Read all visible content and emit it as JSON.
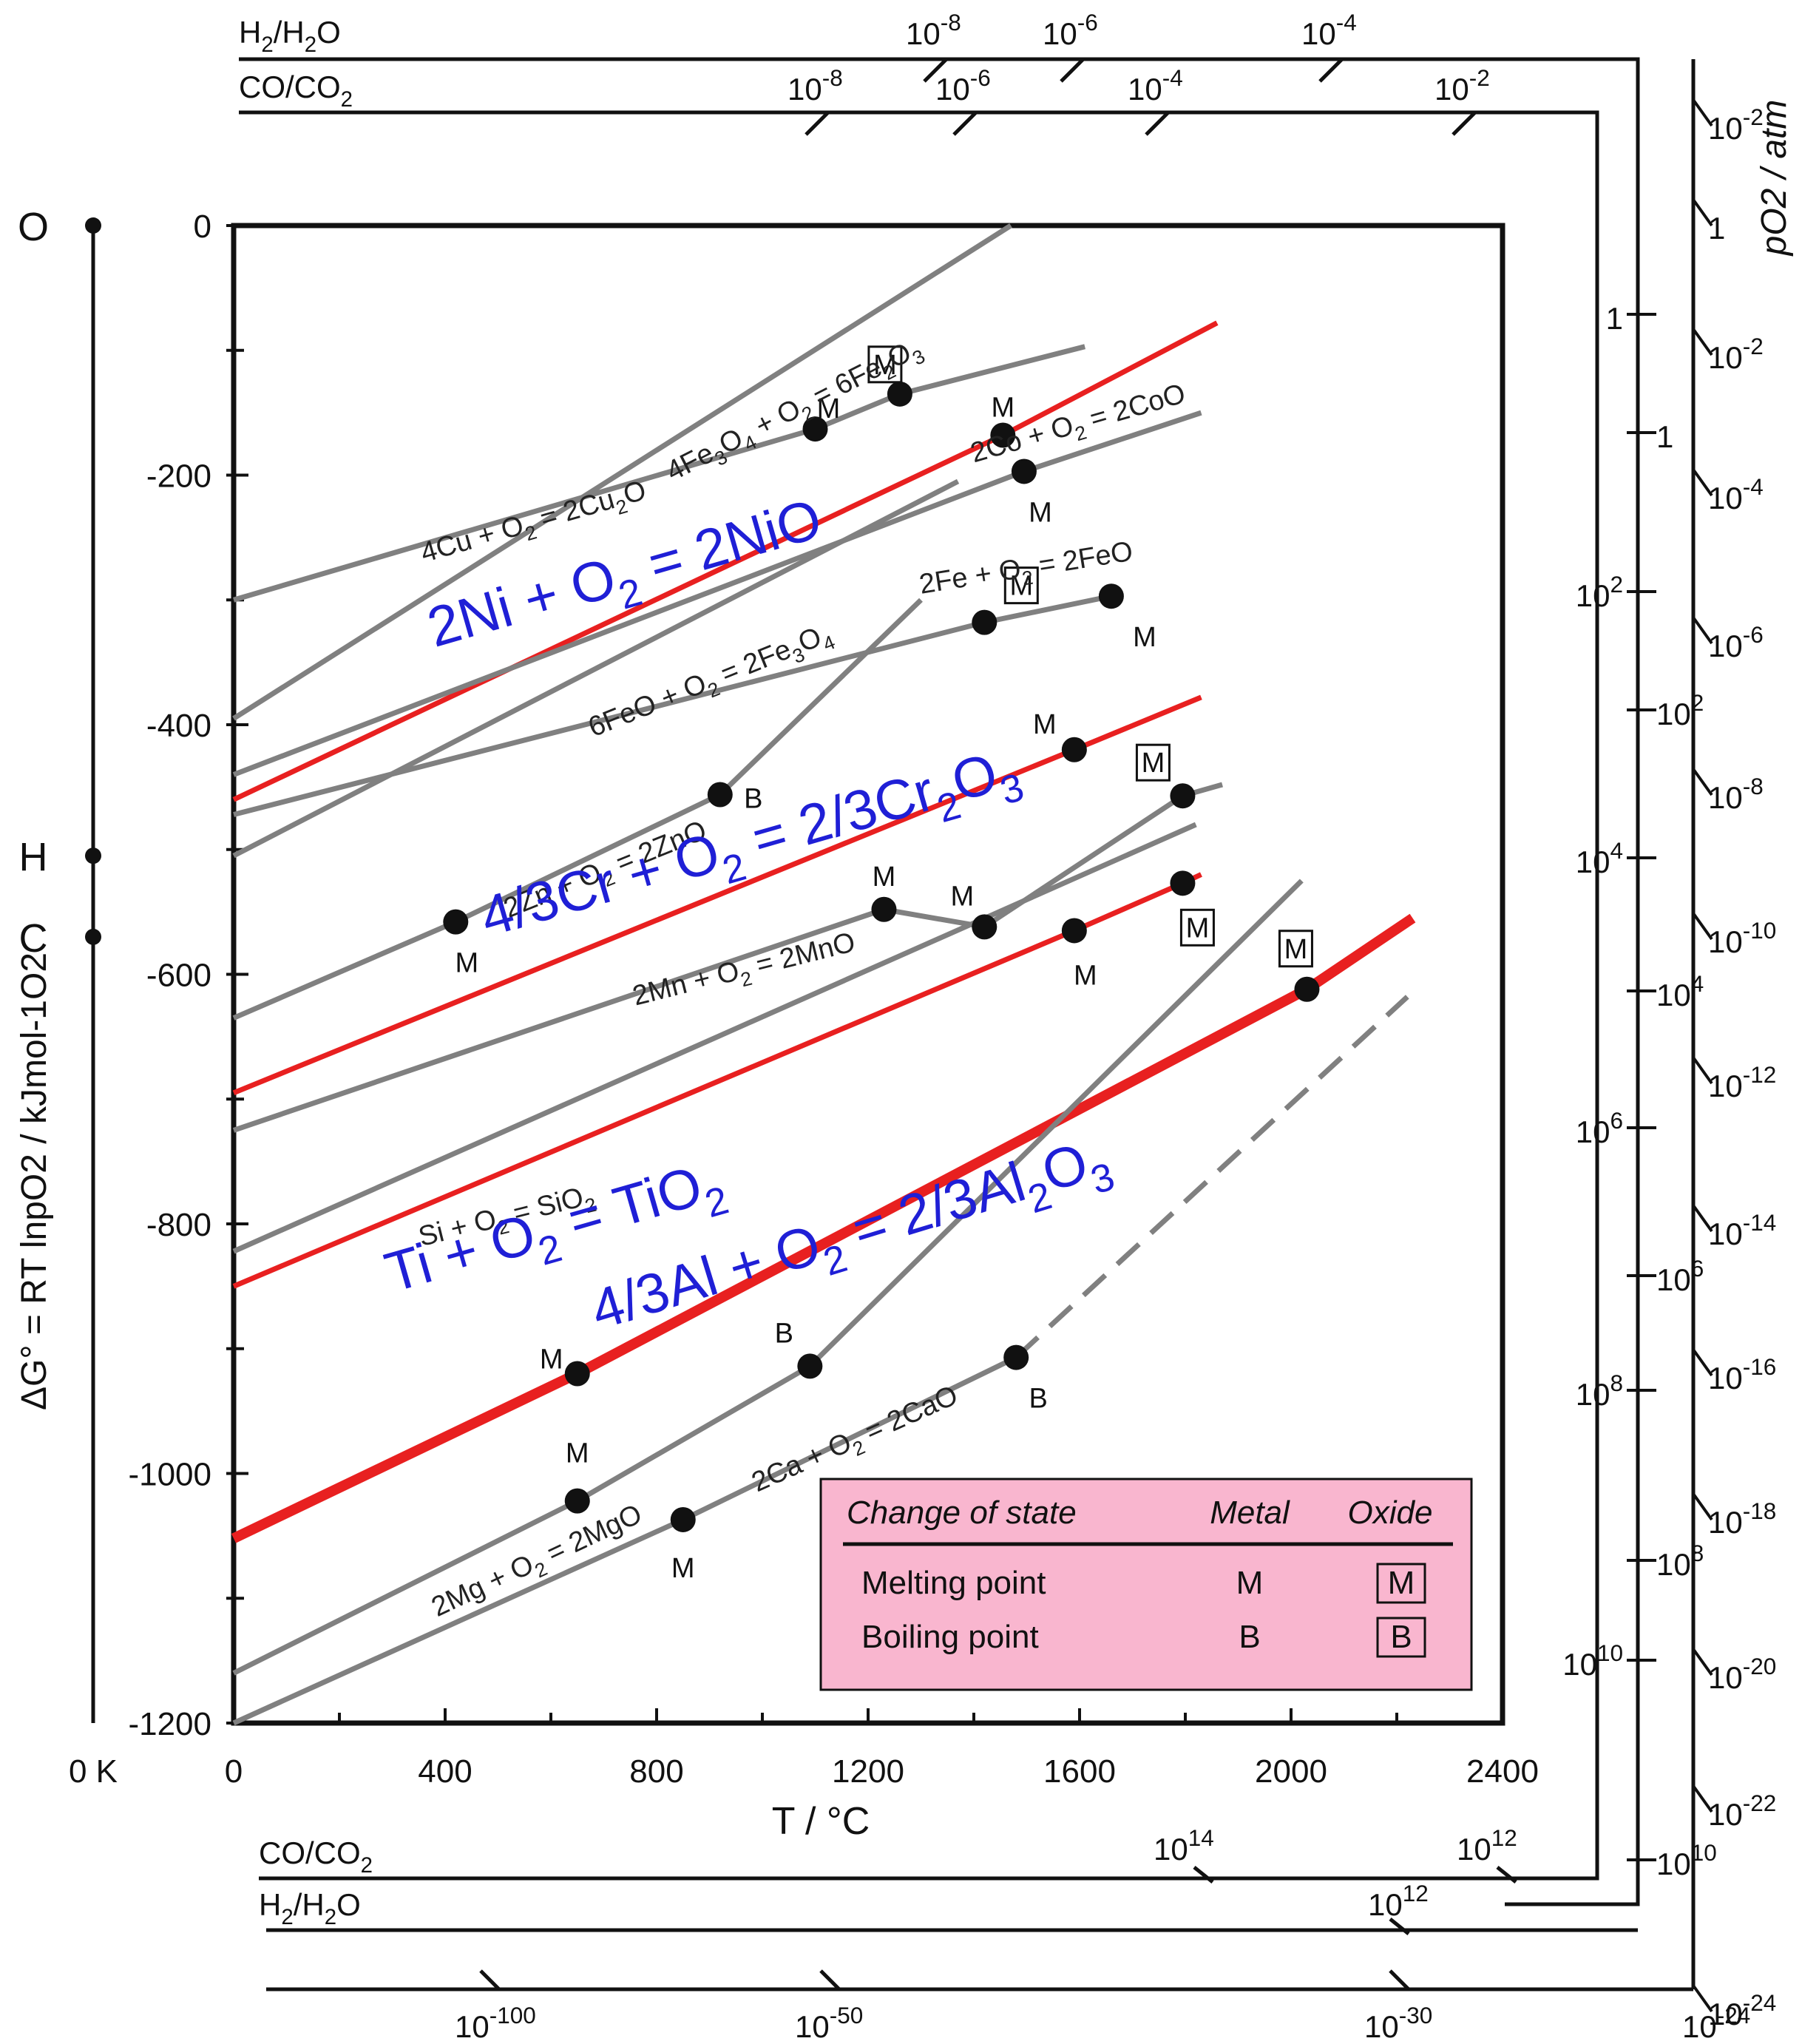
{
  "chart_data": {
    "type": "line",
    "title": "",
    "xlabel": "T / °C",
    "ylabel": "ΔG° = RT lnpO2 / kJmol-1O2",
    "xlim": [
      0,
      2400
    ],
    "ylim": [
      -1200,
      0
    ],
    "x_ticks": [
      "0",
      "400",
      "800",
      "1200",
      "1600",
      "2000",
      "2400"
    ],
    "y_ticks": [
      "0",
      "-200",
      "-400",
      "-600",
      "-800",
      "-1000",
      "-1200"
    ],
    "zero_kelvin_label": "0 K",
    "pivot_labels": [
      "O",
      "H",
      "C"
    ],
    "pivot_values": [
      0,
      -505,
      -570
    ],
    "scales": {
      "h2_h2o_top": {
        "label": "H2/H2O",
        "ticks": [
          "10-8",
          "10-6",
          "10-4"
        ]
      },
      "co_co2_top": {
        "label": "CO/CO2",
        "ticks": [
          "10-8",
          "10-6",
          "10-4",
          "10-2"
        ]
      },
      "po2_label": "pO2 / atm",
      "po2_ticks": [
        "10-2",
        "1",
        "10-2",
        "10-4",
        "10-6",
        "10-8",
        "10-10",
        "10-12",
        "10-14",
        "10-16",
        "10-18",
        "10-20",
        "10-22",
        "10-24"
      ],
      "h2_h2o_right": [
        "1",
        "102",
        "104",
        "106",
        "108",
        "1010"
      ],
      "co_co2_right": [
        "1",
        "102",
        "104",
        "106",
        "108",
        "1010"
      ],
      "co_co2_bottom": {
        "label": "CO/CO2",
        "ticks": [
          "1014",
          "1012"
        ]
      },
      "h2_h2o_bottom": {
        "label": "H2/H2O",
        "ticks": [
          "1012"
        ]
      },
      "po2_bottom": [
        "10-100",
        "10-50",
        "10-30",
        "10-24"
      ]
    },
    "series": [
      {
        "name": "4Fe3O4 + O2 = 6Fe2O3",
        "color": "#808080",
        "x": [
          0,
          1470
        ],
        "y": [
          -395,
          0
        ]
      },
      {
        "name": "4Cu + O2 = 2Cu2O",
        "color": "#808080",
        "x": [
          0,
          1100,
          1260,
          1610
        ],
        "y": [
          -300,
          -163,
          -135,
          -97
        ]
      },
      {
        "name": "2Ni + O2 = 2NiO",
        "color": "#e82020",
        "x": [
          0,
          1455,
          1860
        ],
        "y": [
          -460,
          -168,
          -78
        ],
        "highlight": true
      },
      {
        "name": "2Co + O2 = 2CoO",
        "color": "#808080",
        "x": [
          0,
          1495,
          1830
        ],
        "y": [
          -440,
          -197,
          -150
        ]
      },
      {
        "name": "6FeO + O2 = 2Fe3O4",
        "color": "#808080",
        "x": [
          0,
          1370
        ],
        "y": [
          -505,
          -205
        ]
      },
      {
        "name": "2Fe + O2 = 2FeO",
        "color": "#808080",
        "x": [
          0,
          1420,
          1660
        ],
        "y": [
          -472,
          -318,
          -297
        ]
      },
      {
        "name": "2Zn + O2 = 2ZnO",
        "color": "#808080",
        "x": [
          0,
          420,
          920,
          1300
        ],
        "y": [
          -635,
          -558,
          -456,
          -300
        ]
      },
      {
        "name": "4/3Cr + O2 = 2/3Cr2O3",
        "color": "#e82020",
        "x": [
          0,
          1590,
          1830
        ],
        "y": [
          -695,
          -420,
          -378
        ],
        "highlight": true
      },
      {
        "name": "2Mn + O2 = 2MnO",
        "color": "#808080",
        "x": [
          0,
          1230,
          1420,
          1795,
          1870
        ],
        "y": [
          -725,
          -548,
          -562,
          -457,
          -448
        ]
      },
      {
        "name": "Si + O2 = SiO2",
        "color": "#808080",
        "x": [
          0,
          1820
        ],
        "y": [
          -822,
          -480
        ]
      },
      {
        "name": "Ti + O2 = TiO2",
        "color": "#e82020",
        "x": [
          0,
          1590,
          1795,
          1830
        ],
        "y": [
          -850,
          -565,
          -527,
          -520
        ],
        "highlight": true
      },
      {
        "name": "4/3Al + O2 = 2/3Al2O3",
        "color": "#e82020",
        "x": [
          0,
          650,
          2030,
          2230
        ],
        "y": [
          -1052,
          -920,
          -612,
          -555
        ],
        "highlight": true
      },
      {
        "name": "2Mg + O2 = 2MgO",
        "color": "#808080",
        "x": [
          0,
          650,
          1090,
          2020
        ],
        "y": [
          -1160,
          -1022,
          -914,
          -525
        ]
      },
      {
        "name": "2Ca + O2 = 2CaO",
        "color": "#808080",
        "x": [
          0,
          850,
          1480,
          2220
        ],
        "y": [
          -1200,
          -1037,
          -907,
          -618
        ],
        "dashed_from": 1480
      }
    ],
    "transitions": [
      {
        "x": 1100,
        "y": -163,
        "marker": "M",
        "kind": "metal"
      },
      {
        "x": 1260,
        "y": -135,
        "marker": "M",
        "kind": "oxide"
      },
      {
        "x": 1455,
        "y": -168,
        "marker": "M",
        "kind": "metal"
      },
      {
        "x": 1495,
        "y": -197,
        "marker": "M",
        "kind": "metal"
      },
      {
        "x": 1420,
        "y": -318,
        "marker": "M",
        "kind": "oxide"
      },
      {
        "x": 1660,
        "y": -297,
        "marker": "M",
        "kind": "metal"
      },
      {
        "x": 920,
        "y": -456,
        "marker": "B",
        "kind": "metal"
      },
      {
        "x": 420,
        "y": -558,
        "marker": "M",
        "kind": "metal"
      },
      {
        "x": 1590,
        "y": -420,
        "marker": "M",
        "kind": "metal"
      },
      {
        "x": 1795,
        "y": -457,
        "marker": "M",
        "kind": "oxide"
      },
      {
        "x": 1230,
        "y": -548,
        "marker": "M",
        "kind": "metal"
      },
      {
        "x": 1420,
        "y": -562,
        "marker": "M",
        "kind": "metal"
      },
      {
        "x": 1590,
        "y": -565,
        "marker": "M",
        "kind": "metal"
      },
      {
        "x": 1795,
        "y": -527,
        "marker": "M",
        "kind": "oxide"
      },
      {
        "x": 2030,
        "y": -612,
        "marker": "M",
        "kind": "oxide"
      },
      {
        "x": 650,
        "y": -920,
        "marker": "M",
        "kind": "metal"
      },
      {
        "x": 1090,
        "y": -914,
        "marker": "B",
        "kind": "metal"
      },
      {
        "x": 1480,
        "y": -907,
        "marker": "B",
        "kind": "metal"
      },
      {
        "x": 650,
        "y": -1022,
        "marker": "M",
        "kind": "metal"
      },
      {
        "x": 850,
        "y": -1037,
        "marker": "M",
        "kind": "metal"
      }
    ],
    "annotations": [
      "2Ni + O2 = 2NiO",
      "4/3Cr + O2 = 2/3Cr2O3",
      "Ti + O2 = TiO2",
      "4/3Al + O2 = 2/3Al2O3"
    ],
    "legend": {
      "position": "bottom-right",
      "headers": [
        "Change of state",
        "Metal",
        "Oxide"
      ],
      "rows": [
        {
          "label": "Melting point",
          "metal": "M",
          "oxide": "M"
        },
        {
          "label": "Boiling point",
          "metal": "B",
          "oxide": "B"
        }
      ]
    }
  }
}
